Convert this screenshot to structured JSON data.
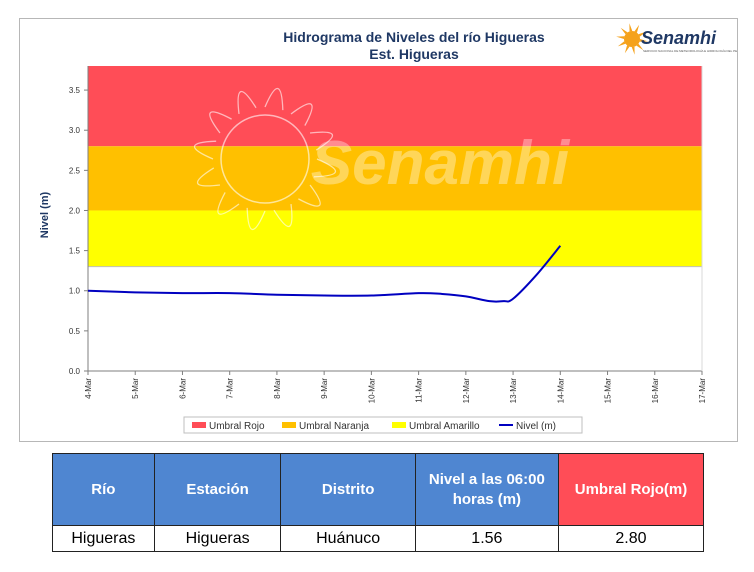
{
  "chart_data": {
    "type": "line",
    "title": "Hidrograma de Niveles del río Higueras",
    "subtitle": "Est. Higueras",
    "ylabel": "Nivel (m)",
    "xlabel": "",
    "ylim": [
      0.0,
      3.8
    ],
    "yticks": [
      "0.0",
      "0.5",
      "1.0",
      "1.5",
      "2.0",
      "2.5",
      "3.0",
      "3.5"
    ],
    "categories": [
      "4-Mar",
      "5-Mar",
      "6-Mar",
      "7-Mar",
      "8-Mar",
      "9-Mar",
      "10-Mar",
      "11-Mar",
      "12-Mar",
      "13-Mar",
      "14-Mar",
      "15-Mar",
      "16-Mar",
      "17-Mar"
    ],
    "thresholds": [
      {
        "name": "Umbral Rojo",
        "from": 2.8,
        "to": 3.8,
        "color": "#ff4d57"
      },
      {
        "name": "Umbral Naranja",
        "from": 2.0,
        "to": 2.8,
        "color": "#ffc000"
      },
      {
        "name": "Umbral Amarillo",
        "from": 1.3,
        "to": 2.0,
        "color": "#ffff00"
      }
    ],
    "series": [
      {
        "name": "Nivel (m)",
        "color": "#0000c0",
        "x": [
          0,
          1,
          2,
          3,
          4,
          5,
          6,
          7,
          7.5,
          8,
          8.5,
          8.8,
          9,
          9.5,
          10
        ],
        "values": [
          1.0,
          0.98,
          0.97,
          0.97,
          0.95,
          0.94,
          0.94,
          0.97,
          0.96,
          0.93,
          0.87,
          0.87,
          0.9,
          1.2,
          1.56
        ]
      }
    ],
    "legend_position": "bottom",
    "grid": false
  },
  "logo": {
    "text": "Senamhi",
    "subtext": "SERVICIO NACIONAL DE METEOROLOGÍA E HIDROLOGÍA DEL PERÚ",
    "color": "#f5a21b"
  },
  "watermark": {
    "text": "Senamhi"
  },
  "table": {
    "headers": [
      "Río",
      "Estación",
      "Distrito",
      "Nivel a las 06:00 horas (m)",
      "Umbral Rojo(m)"
    ],
    "rows": [
      [
        "Higueras",
        "Higueras",
        "Huánuco",
        "1.56",
        "2.80"
      ]
    ]
  }
}
